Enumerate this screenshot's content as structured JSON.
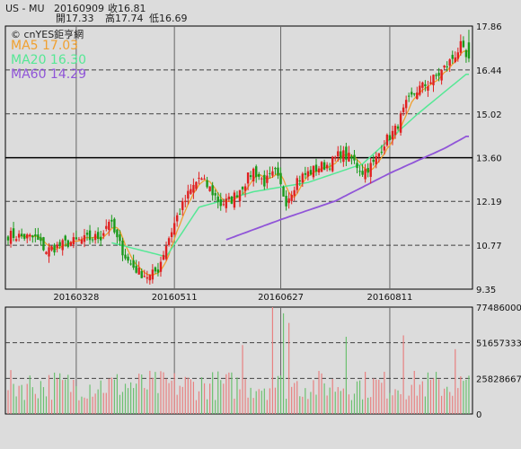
{
  "header": {
    "symbol": "US - MU",
    "date": "20160909",
    "close_label": "收16.81",
    "open_label": "開17.33",
    "high_label": "高17.74",
    "low_label": "低16.69"
  },
  "legend": {
    "brand": "cnYES鉅亨網",
    "brand_icon": "copyright-icon",
    "ma5": "MA5 17.03",
    "ma20": "MA20 16.30",
    "ma60": "MA60 14.29"
  },
  "colors": {
    "background": "#dcdcdc",
    "up": "#e02020",
    "down": "#1a9a1a",
    "ma5": "#f0a030",
    "ma20": "#55e895",
    "ma60": "#9055d8",
    "grid": "#404040"
  },
  "chart_data": [
    {
      "type": "candlestick",
      "title": "",
      "y_ticks": [
        "17.86",
        "16.44",
        "15.02",
        "13.60",
        "12.19",
        "10.77",
        "9.35"
      ],
      "ylim": [
        9.35,
        17.86
      ],
      "x_ticks": [
        "20160328",
        "20160511",
        "20160627",
        "20160811"
      ],
      "reference_line": 13.6,
      "moving_averages": [
        {
          "name": "MA5",
          "last": 17.03
        },
        {
          "name": "MA20",
          "last": 16.3
        },
        {
          "name": "MA60",
          "last": 14.29
        }
      ],
      "last_bar": {
        "date": "20160909",
        "open": 17.33,
        "high": 17.74,
        "low": 16.69,
        "close": 16.81
      },
      "anchor_closes": [
        [
          0,
          11.1
        ],
        [
          5,
          11.05
        ],
        [
          10,
          11.0
        ],
        [
          14,
          10.6
        ],
        [
          22,
          10.85
        ],
        [
          28,
          10.95
        ],
        [
          34,
          11.05
        ],
        [
          37,
          11.6
        ],
        [
          40,
          10.95
        ],
        [
          44,
          10.25
        ],
        [
          48,
          9.9
        ],
        [
          52,
          9.75
        ],
        [
          55,
          10.0
        ],
        [
          58,
          10.8
        ],
        [
          62,
          11.7
        ],
        [
          66,
          12.4
        ],
        [
          70,
          12.95
        ],
        [
          74,
          12.6
        ],
        [
          78,
          12.1
        ],
        [
          82,
          12.25
        ],
        [
          86,
          12.7
        ],
        [
          90,
          13.2
        ],
        [
          94,
          12.8
        ],
        [
          98,
          13.1
        ],
        [
          102,
          12.2
        ],
        [
          106,
          12.9
        ],
        [
          110,
          13.1
        ],
        [
          114,
          13.3
        ],
        [
          118,
          13.4
        ],
        [
          122,
          13.75
        ],
        [
          126,
          13.55
        ],
        [
          130,
          13.15
        ],
        [
          134,
          13.4
        ],
        [
          138,
          14.1
        ],
        [
          142,
          14.5
        ],
        [
          146,
          15.3
        ],
        [
          150,
          15.8
        ],
        [
          154,
          16.0
        ],
        [
          158,
          16.3
        ],
        [
          162,
          16.7
        ],
        [
          166,
          17.2
        ],
        [
          168,
          16.81
        ]
      ],
      "ma20_anchors": [
        [
          38,
          10.85
        ],
        [
          58,
          10.4
        ],
        [
          70,
          12.0
        ],
        [
          90,
          12.5
        ],
        [
          110,
          12.8
        ],
        [
          130,
          13.4
        ],
        [
          150,
          15.0
        ],
        [
          168,
          16.3
        ]
      ],
      "ma60_anchors": [
        [
          80,
          10.95
        ],
        [
          100,
          11.6
        ],
        [
          120,
          12.2
        ],
        [
          140,
          13.1
        ],
        [
          160,
          13.9
        ],
        [
          168,
          14.29
        ]
      ]
    },
    {
      "type": "bar",
      "title": "",
      "y_ticks": [
        "77486000",
        "51657333",
        "25828667",
        "0"
      ],
      "ylim": [
        0,
        77486000
      ],
      "volume_avg": 22000000,
      "volume_peaks": [
        [
          97,
          77486000
        ],
        [
          101,
          73000000
        ],
        [
          103,
          66000000
        ],
        [
          86,
          50000000
        ],
        [
          124,
          56000000
        ],
        [
          145,
          57000000
        ],
        [
          164,
          47000000
        ]
      ]
    }
  ]
}
